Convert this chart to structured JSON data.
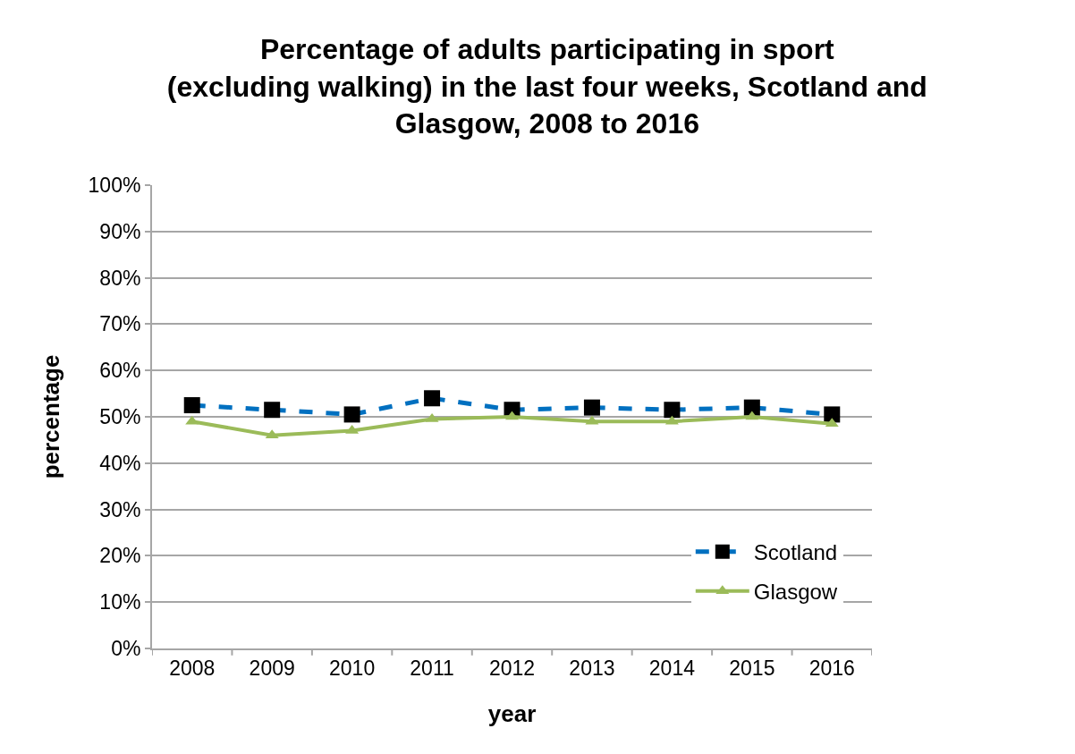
{
  "chart_data": {
    "type": "line",
    "title": "Percentage of adults participating in sport\n(excluding walking) in the last four weeks, Scotland and\nGlasgow, 2008 to 2016",
    "xlabel": "year",
    "ylabel": "percentage",
    "categories": [
      "2008",
      "2009",
      "2010",
      "2011",
      "2012",
      "2013",
      "2014",
      "2015",
      "2016"
    ],
    "ylim": [
      0,
      100
    ],
    "yticks": [
      {
        "value": 0,
        "label": "0%"
      },
      {
        "value": 10,
        "label": "10%"
      },
      {
        "value": 20,
        "label": "20%"
      },
      {
        "value": 30,
        "label": "30%"
      },
      {
        "value": 40,
        "label": "40%"
      },
      {
        "value": 50,
        "label": "50%"
      },
      {
        "value": 60,
        "label": "60%"
      },
      {
        "value": 70,
        "label": "70%"
      },
      {
        "value": 80,
        "label": "80%"
      },
      {
        "value": 90,
        "label": "90%"
      },
      {
        "value": 100,
        "label": "100%"
      }
    ],
    "grid": "y",
    "legend": "bottom right",
    "series": [
      {
        "name": "Scotland",
        "color": "#0070c0",
        "line_style": "dashed",
        "marker": "square",
        "values": [
          52.5,
          51.5,
          50.5,
          54,
          51.5,
          52,
          51.5,
          52,
          50.5
        ]
      },
      {
        "name": "Glasgow",
        "color": "#9bbb59",
        "line_style": "solid",
        "marker": "triangle",
        "values": [
          49,
          46,
          47,
          49.5,
          50,
          49,
          49,
          50,
          48.5
        ]
      }
    ]
  }
}
